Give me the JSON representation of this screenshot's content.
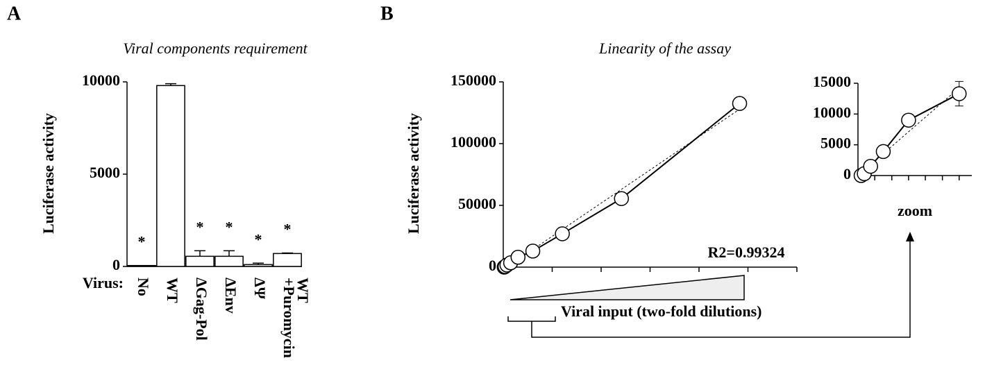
{
  "panels": [
    "A",
    "B"
  ],
  "chart_data": [
    {
      "type": "bar",
      "title": "Viral components requirement",
      "ylabel": "Luciferase activity",
      "xlabel": "Virus:",
      "categories": [
        "No",
        "WT",
        "ΔGag-Pol",
        "ΔEnv",
        "ΔΨ",
        [
          "WT",
          "+Puromycin"
        ]
      ],
      "values": [
        50,
        9800,
        550,
        550,
        100,
        700
      ],
      "errors": [
        null,
        100,
        300,
        300,
        80,
        30
      ],
      "annotations": [
        "*",
        null,
        "*",
        "*",
        "*",
        "*"
      ],
      "color": "#ffffff",
      "ylim": [
        0,
        10000
      ],
      "yticks": [
        0,
        5000,
        10000
      ]
    },
    {
      "type": "line",
      "title": "Linearity of the assay",
      "ylabel": "Luciferase activity",
      "xlabel": "Viral input (two-fold dilutions)",
      "annotation": "R2=0.99324",
      "x": [
        1,
        2,
        4,
        8,
        16,
        32,
        64,
        128,
        256
      ],
      "values": [
        0,
        500,
        1700,
        3500,
        8000,
        13000,
        27000,
        55500,
        132500
      ],
      "xlim": [
        0,
        318
      ],
      "xticks": [
        0,
        53,
        106,
        159,
        212,
        265,
        318
      ],
      "ylim": [
        0,
        150000
      ],
      "yticks": [
        0,
        50000,
        100000,
        150000
      ]
    },
    {
      "type": "line",
      "xlabel": "zoom",
      "x": [
        1,
        2,
        4,
        8,
        16,
        32
      ],
      "values": [
        0,
        300,
        1500,
        3900,
        9000,
        13300
      ],
      "errors": [
        null,
        null,
        null,
        null,
        null,
        2000
      ],
      "xlim": [
        0,
        36
      ],
      "xticks": [
        0,
        5.3,
        10.7,
        16,
        21.3,
        26.7,
        32
      ],
      "ylim": [
        0,
        15000
      ],
      "yticks": [
        0,
        5000,
        10000,
        15000
      ]
    }
  ]
}
